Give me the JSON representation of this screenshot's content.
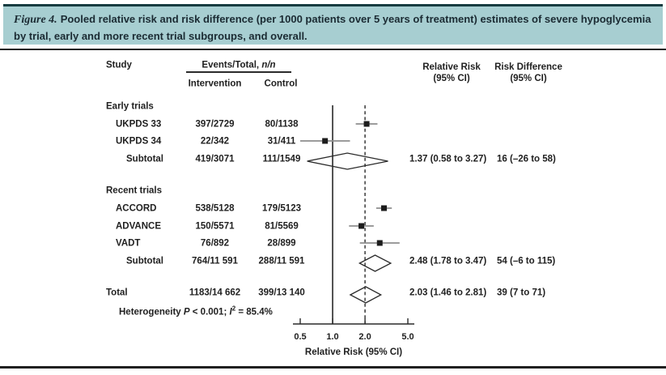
{
  "figure": {
    "label": "Figure 4.",
    "caption": "Pooled relative risk and risk difference (per 1000 patients over 5 years of treatment) estimates of severe hypoglycemia by trial, early and more recent trial subgroups, and overall.",
    "header_bg": "#a7ced1",
    "accent_dark": "#173c41",
    "rule_color": "#202020"
  },
  "columns": {
    "study": "Study",
    "events_label": "Events/Total, ",
    "events_italic": "n/n",
    "intervention": "Intervention",
    "control": "Control",
    "rr_line1": "Relative Risk",
    "rr_line2": "(95% CI)",
    "rd_line1": "Risk Difference",
    "rd_line2": "(95% CI)"
  },
  "heterogeneity": {
    "prefix": "Heterogeneity ",
    "p": "P",
    "mid": " < 0.001; ",
    "i": "I",
    "sup": "2",
    "suffix": " = 85.4%"
  },
  "chart_data": {
    "type": "forest",
    "x_axis": {
      "scale": "log",
      "ticks": [
        0.5,
        1.0,
        2.0,
        5.0
      ],
      "tick_labels": [
        "0.5",
        "1.0",
        "2.0",
        "5.0"
      ],
      "label": "Relative Risk (95% CI)",
      "solid_ref_line": 1.0,
      "dashed_ref_line": 2.0
    },
    "groups": [
      {
        "name": "Early trials",
        "studies": [
          {
            "label": "UKPDS 33",
            "intervention": "397/2729",
            "control": "80/1138",
            "rr": 2.07,
            "ci": [
              1.64,
              2.61
            ]
          },
          {
            "label": "UKPDS 34",
            "intervention": "22/342",
            "control": "31/411",
            "rr": 0.85,
            "ci": [
              0.5,
              1.45
            ]
          }
        ],
        "subtotal": {
          "label": "Subtotal",
          "intervention": "419/3071",
          "control": "111/1549",
          "rr": 1.37,
          "ci": [
            0.58,
            3.27
          ],
          "rr_text": "1.37 (0.58 to 3.27)",
          "rd_text": "16 (–26 to 58)"
        }
      },
      {
        "name": "Recent trials",
        "studies": [
          {
            "label": "ACCORD",
            "intervention": "538/5128",
            "control": "179/5123",
            "rr": 3.0,
            "ci": [
              2.54,
              3.55
            ]
          },
          {
            "label": "ADVANCE",
            "intervention": "150/5571",
            "control": "81/5569",
            "rr": 1.85,
            "ci": [
              1.42,
              2.41
            ]
          },
          {
            "label": "VADT",
            "intervention": "76/892",
            "control": "28/899",
            "rr": 2.74,
            "ci": [
              1.79,
              4.19
            ]
          }
        ],
        "subtotal": {
          "label": "Subtotal",
          "intervention": "764/11 591",
          "control": "288/11 591",
          "rr": 2.48,
          "ci": [
            1.78,
            3.47
          ],
          "rr_text": "2.48 (1.78 to 3.47)",
          "rd_text": "54 (–6 to 115)"
        }
      }
    ],
    "total": {
      "label": "Total",
      "intervention": "1183/14 662",
      "control": "399/13 140",
      "rr": 2.03,
      "ci": [
        1.46,
        2.81
      ],
      "rr_text": "2.03 (1.46 to 2.81)",
      "rd_text": "39 (7 to 71)"
    }
  }
}
